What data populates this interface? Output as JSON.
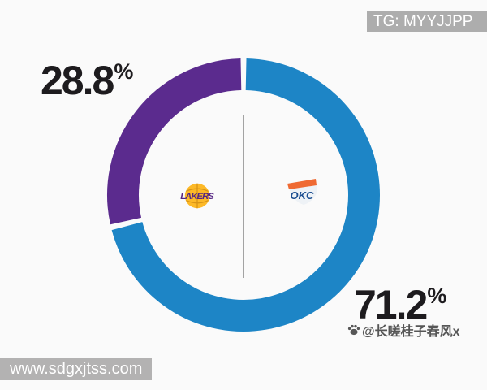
{
  "banner": {
    "tg_label": "TG: MYYJJPP"
  },
  "watermarks": {
    "site_url": "www.sdgxjtss.com",
    "author": "@长嗟桂子春风x"
  },
  "chart_data": {
    "type": "pie",
    "variant": "donut",
    "title": "",
    "start_angle": "12-oclock",
    "direction": "clockwise",
    "gap_degrees": 2.4,
    "center_divider": true,
    "legend_position": "none",
    "slices": [
      {
        "key": "thunder",
        "team": "Oklahoma City Thunder",
        "value": 71.2,
        "label": "71.2",
        "unit": "%",
        "color": "#1d85c6",
        "logo_text": "OKC",
        "logo_colors": {
          "shield": "#eef2f6",
          "band": "#ef6a33",
          "text": "#1d4f91",
          "outline": "#9aa4b0"
        }
      },
      {
        "key": "lakers",
        "team": "Los Angeles Lakers",
        "value": 28.8,
        "label": "28.8",
        "unit": "%",
        "color": "#5b2b8e",
        "logo_colors": {
          "ball": "#fdb927",
          "seams": "#d89417",
          "text": "#552583"
        },
        "logo_text": "LAKERS"
      }
    ]
  },
  "colors": {
    "background": "#fafafa",
    "percent_text": "#1d1b1e",
    "banner_bg": "#a6a6a6",
    "site_bar_bg": "#b3b2b2",
    "divider": "#a3a3a3"
  }
}
